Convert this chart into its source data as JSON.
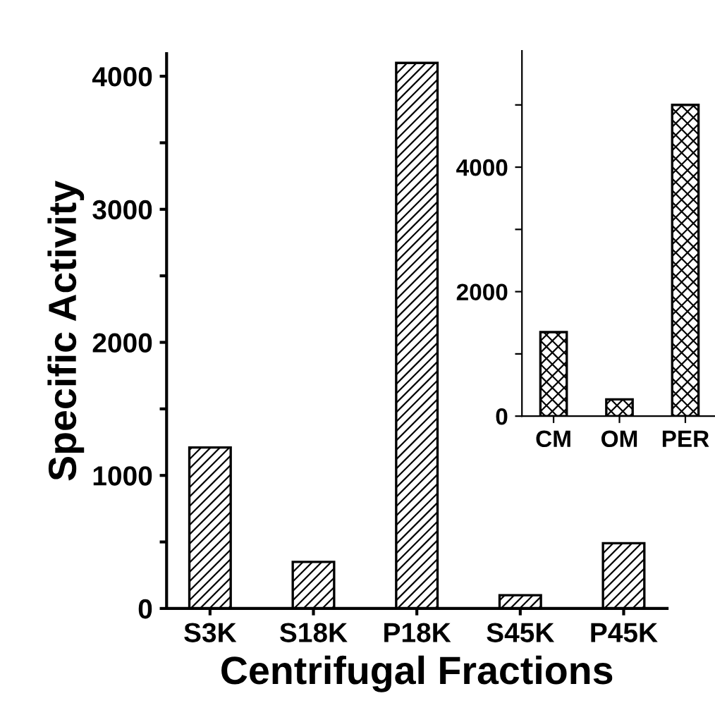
{
  "chart_data": [
    {
      "type": "bar",
      "xlabel": "Centrifugal Fractions",
      "ylabel": "Specific Activity",
      "categories": [
        "S3K",
        "S18K",
        "P18K",
        "S45K",
        "P45K"
      ],
      "values": [
        1210,
        350,
        4100,
        100,
        490
      ],
      "color": "#000000",
      "ylim": [
        0,
        4170
      ],
      "yticks": [
        0,
        {
          "value": 500,
          "label": null
        },
        1000,
        {
          "value": 1500,
          "label": null
        },
        2000,
        {
          "value": 2500,
          "label": null
        },
        3000,
        {
          "value": 3500,
          "label": null
        },
        4000
      ],
      "grid": false
    },
    {
      "type": "bar",
      "categories": [
        "CM",
        "OM",
        "PER"
      ],
      "values": [
        1350,
        270,
        5000
      ],
      "color": "#000000",
      "ylim": [
        0,
        5870
      ],
      "yticks": [
        0,
        {
          "value": 1000,
          "label": null
        },
        2000,
        {
          "value": 3000,
          "label": null
        },
        4000,
        {
          "value": 5000,
          "label": null
        }
      ],
      "grid": false
    }
  ]
}
